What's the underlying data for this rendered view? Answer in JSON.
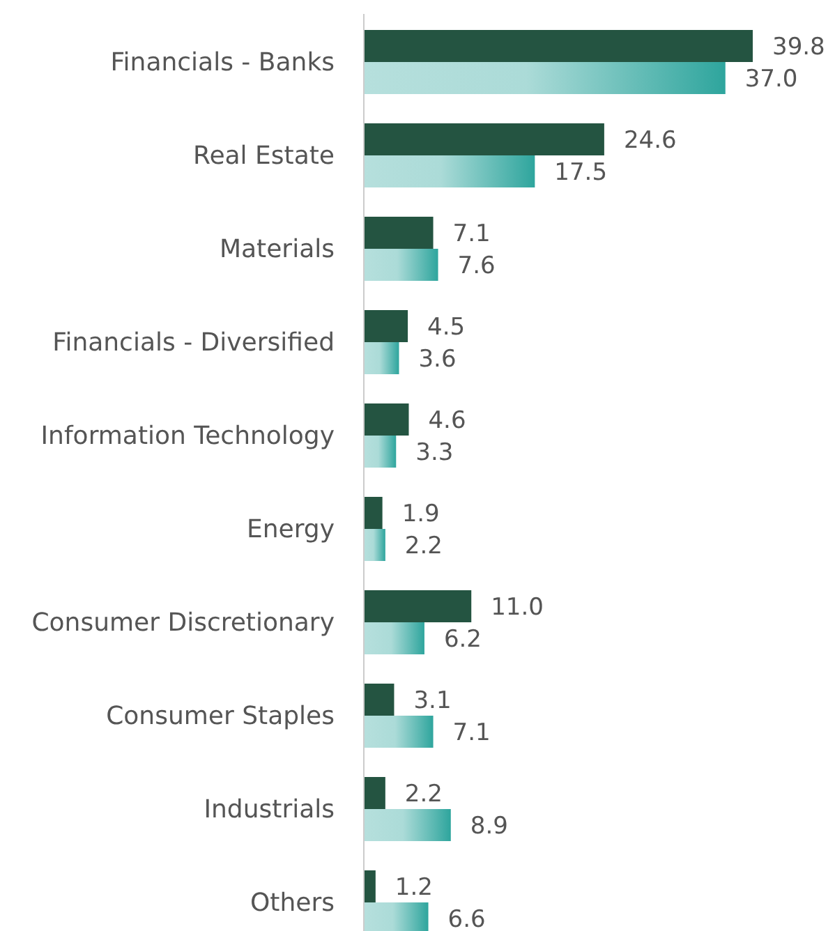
{
  "chart_data": {
    "type": "bar",
    "orientation": "horizontal",
    "categories": [
      "Financials - Banks",
      "Real Estate",
      "Materials",
      "Financials - Diversified",
      "Information Technology",
      "Energy",
      "Consumer Discretionary",
      "Consumer Staples",
      "Industrials",
      "Others"
    ],
    "series": [
      {
        "color": "#245441",
        "values": [
          39.8,
          24.6,
          7.1,
          4.5,
          4.6,
          1.9,
          11,
          3.1,
          2.2,
          1.2
        ],
        "value_labels": [
          "39.8",
          "24.6",
          "7.1",
          "4.5",
          "4.6",
          "1.9",
          "11.0",
          "3.1",
          "2.2",
          "1.2"
        ]
      },
      {
        "color": "#2ea59d",
        "values": [
          37,
          17.5,
          7.6,
          3.6,
          3.3,
          2.2,
          6.2,
          7.1,
          8.9,
          6.6
        ],
        "value_labels": [
          "37.0",
          "17.5",
          "7.6",
          "3.6",
          "3.3",
          "2.2",
          "6.2",
          "7.1",
          "8.9",
          "6.6"
        ]
      }
    ]
  }
}
